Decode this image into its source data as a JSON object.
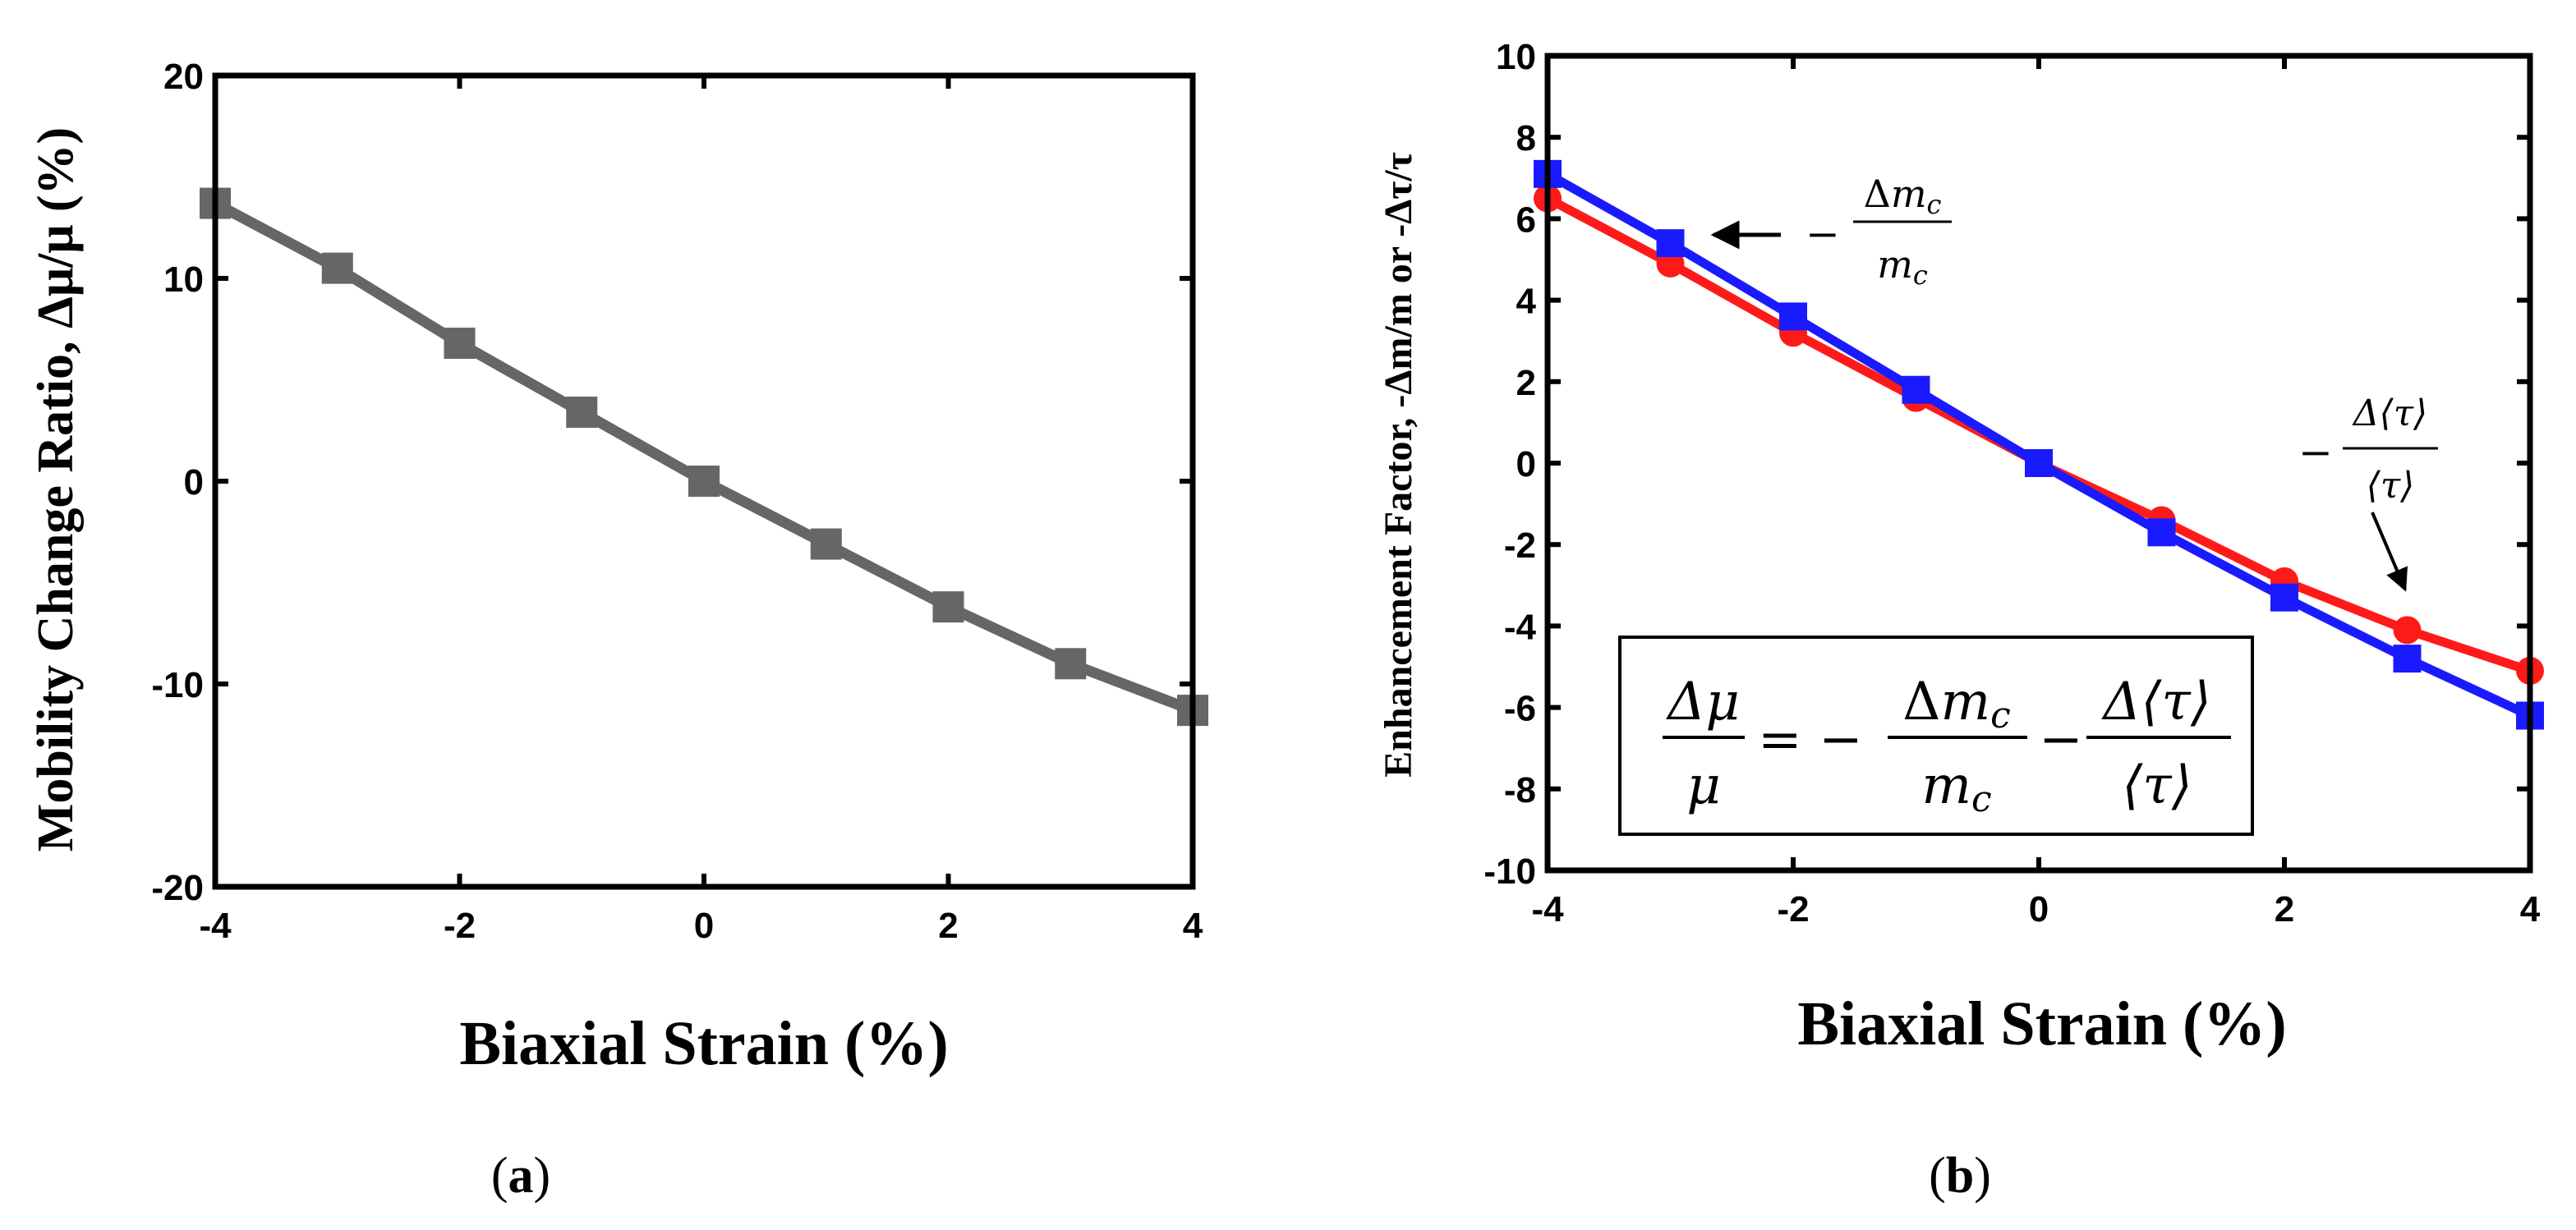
{
  "chart_data": [
    {
      "panel": "a",
      "type": "line",
      "caption_parts": [
        "(",
        "a",
        ")"
      ],
      "xlabel": "Biaxial Strain (%)",
      "ylabel": "Mobility Change Ratio, Δμ/μ (%)",
      "xlim": [
        -4,
        4
      ],
      "ylim": [
        -20,
        20
      ],
      "x_ticks": [
        -4,
        -2,
        0,
        2,
        4
      ],
      "y_ticks": [
        -20,
        -10,
        0,
        10,
        20
      ],
      "series": [
        {
          "name": "Δμ/μ",
          "color": "#666666",
          "marker": "square",
          "x": [
            -4,
            -3,
            -2,
            -1,
            0,
            1,
            2,
            3,
            4
          ],
          "values": [
            13.7,
            10.5,
            6.8,
            3.4,
            0.0,
            -3.1,
            -6.2,
            -9.0,
            -11.3
          ]
        }
      ]
    },
    {
      "panel": "b",
      "type": "line",
      "caption_parts": [
        "(",
        "b",
        ")"
      ],
      "xlabel": "Biaxial Strain (%)",
      "ylabel": "Enhancement Factor, -Δm/m or -Δτ/τ",
      "xlim": [
        -4,
        4
      ],
      "ylim": [
        -10,
        10
      ],
      "x_ticks": [
        -4,
        -2,
        0,
        2,
        4
      ],
      "y_ticks": [
        -10,
        -8,
        -6,
        -4,
        -2,
        0,
        2,
        4,
        6,
        8,
        10
      ],
      "series": [
        {
          "name": "-Δ⟨τ⟩/⟨τ⟩",
          "color": "#ff1a1a",
          "marker": "circle",
          "x": [
            -4,
            -3,
            -2,
            -1,
            0,
            1,
            2,
            3,
            4
          ],
          "values": [
            6.5,
            4.9,
            3.2,
            1.6,
            0.0,
            -1.4,
            -2.9,
            -4.1,
            -5.1
          ]
        },
        {
          "name": "-Δm_c/m_c",
          "color": "#1a1aff",
          "marker": "square",
          "x": [
            -4,
            -3,
            -2,
            -1,
            0,
            1,
            2,
            3,
            4
          ],
          "values": [
            7.1,
            5.4,
            3.6,
            1.8,
            0.0,
            -1.7,
            -3.3,
            -4.8,
            -6.2
          ]
        }
      ],
      "annotations": {
        "mass": {
          "sign": "−",
          "num_delta": "Δ",
          "num_var": "m",
          "sub": "c",
          "den_var": "m",
          "den_sub": "c"
        },
        "tau": {
          "sign": "−",
          "num": "Δ⟨τ⟩",
          "den": "⟨τ⟩"
        }
      },
      "equation": {
        "lhs_num": "Δμ",
        "lhs_den": "μ",
        "equals_minus": "= −",
        "t1_delta": "Δ",
        "t1_var": "m",
        "t1_sub": "c",
        "t1_den_var": "m",
        "t1_den_sub": "c",
        "minus": "−",
        "t2_num": "Δ⟨τ⟩",
        "t2_den": "⟨τ⟩"
      }
    }
  ]
}
